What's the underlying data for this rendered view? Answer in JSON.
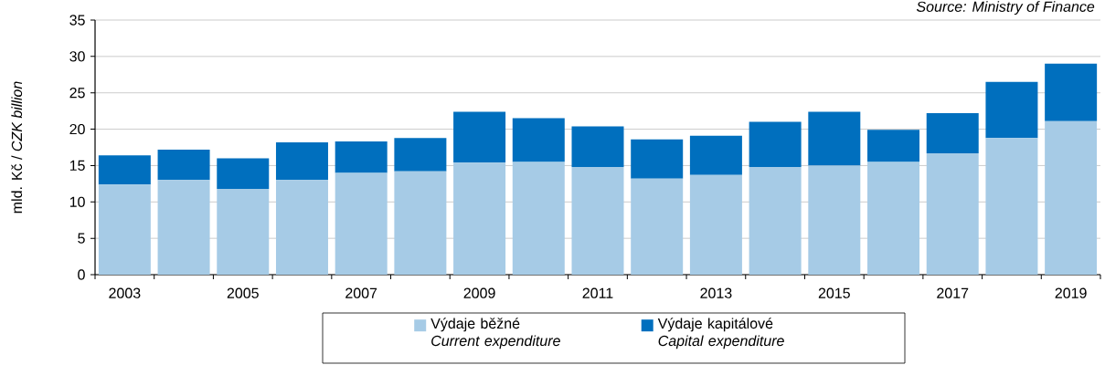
{
  "chart_data": {
    "type": "bar",
    "stacked": true,
    "categories": [
      "2003",
      null,
      "2005",
      null,
      "2007",
      null,
      "2009",
      null,
      "2011",
      null,
      "2013",
      null,
      "2015",
      null,
      "2017",
      null,
      "2019"
    ],
    "series": [
      {
        "name": "Výdaje běžné *Current expenditure*",
        "color": "#a6cbe6",
        "values": [
          12.4,
          13.0,
          11.8,
          13.0,
          14.0,
          14.2,
          15.4,
          15.5,
          14.8,
          13.2,
          13.7,
          14.8,
          15.0,
          15.5,
          16.7,
          18.8,
          21.1
        ]
      },
      {
        "name": "Výdaje kapitálové *Capital expenditure*",
        "color": "#006fbe",
        "values": [
          4.0,
          4.2,
          4.2,
          5.2,
          4.3,
          4.6,
          7.0,
          6.0,
          5.6,
          5.4,
          5.4,
          6.2,
          7.4,
          4.4,
          5.5,
          7.7,
          7.9
        ]
      }
    ],
    "ylabel": "mld. Kč / *CZK billion*",
    "ylim": [
      0,
      35
    ],
    "yticks": [
      0,
      5,
      10,
      15,
      20,
      25,
      30,
      35
    ],
    "grid": "y",
    "legend": "bottom",
    "annotations": [
      "Source: Ministry of Finance"
    ]
  }
}
